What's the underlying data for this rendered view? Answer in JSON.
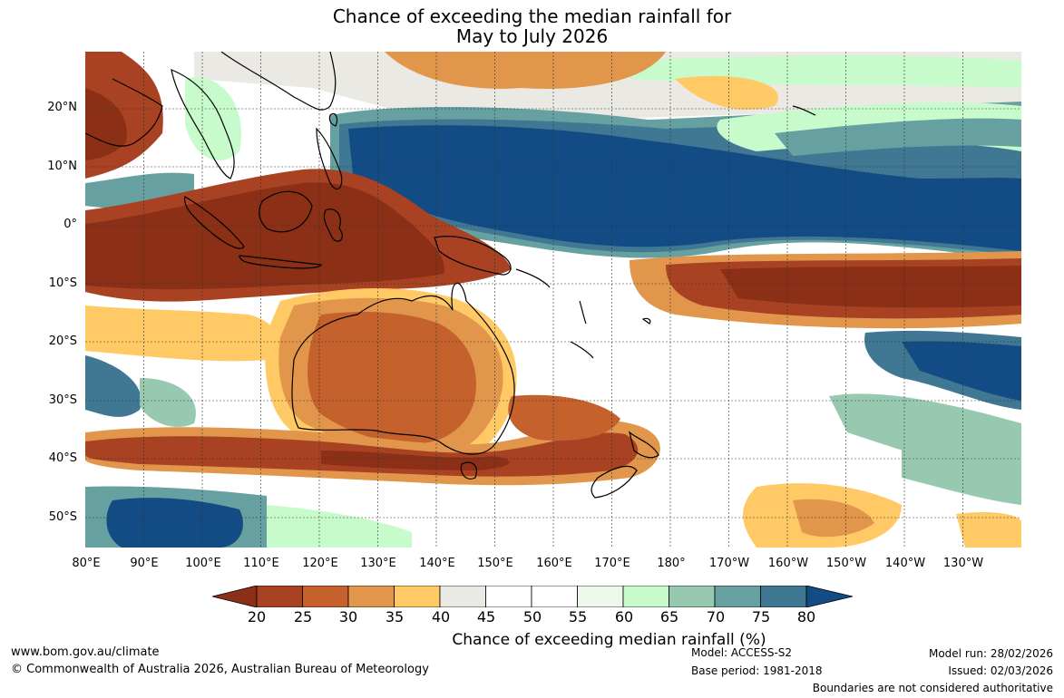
{
  "title": {
    "line1": "Chance of exceeding the median rainfall for",
    "line2": "May to July 2026"
  },
  "map": {
    "lat_labels": [
      "20°N",
      "10°N",
      "0°",
      "10°S",
      "20°S",
      "30°S",
      "40°S",
      "50°S"
    ],
    "lon_labels": [
      "80°E",
      "90°E",
      "100°E",
      "110°E",
      "120°E",
      "130°E",
      "140°E",
      "150°E",
      "160°E",
      "170°E",
      "180°",
      "170°W",
      "160°W",
      "150°W",
      "140°W",
      "130°W"
    ],
    "ocean_color": "#ffffff"
  },
  "colorbar": {
    "ticks": [
      "20",
      "25",
      "30",
      "35",
      "40",
      "45",
      "50",
      "55",
      "60",
      "65",
      "70",
      "75",
      "80"
    ],
    "colors": [
      "#8b3016",
      "#a84223",
      "#c5612d",
      "#e1964b",
      "#ffca66",
      "#ebe9e3",
      "#ffffff",
      "#ffffff",
      "#ecf8ea",
      "#c8fbcb",
      "#97c9b1",
      "#66a0a0",
      "#407893",
      "#134b85"
    ],
    "label": "Chance of exceeding median rainfall (%)"
  },
  "footer": {
    "url": "www.bom.gov.au/climate",
    "copyright": "© Commonwealth of Australia 2026, Australian Bureau of Meteorology",
    "model": "Model: ACCESS-S2",
    "base_period": "Base period: 1981-2018",
    "model_run": "Model run: 28/02/2026",
    "issued": "Issued: 02/03/2026",
    "disclaimer": "Boundaries are not considered authoritative"
  }
}
